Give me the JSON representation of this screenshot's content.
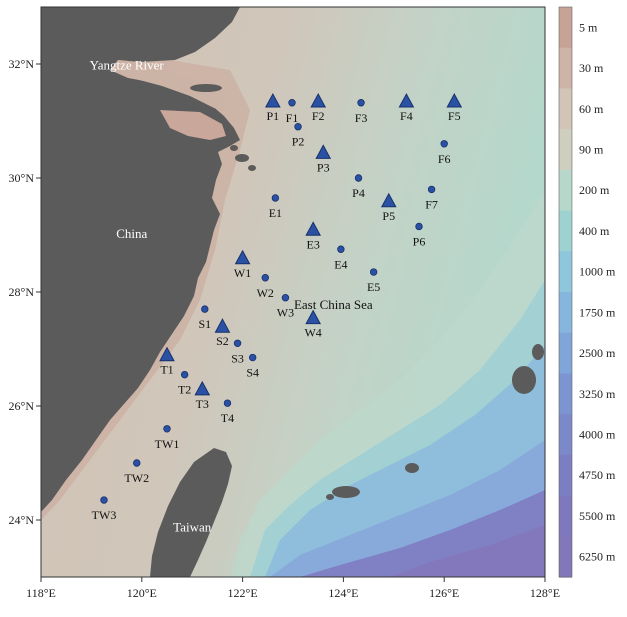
{
  "map": {
    "lon_range": [
      118,
      128
    ],
    "lat_range": [
      23,
      33
    ],
    "x_ticks": [
      {
        "value": 118,
        "label": "118°E"
      },
      {
        "value": 120,
        "label": "120°E"
      },
      {
        "value": 122,
        "label": "122°E"
      },
      {
        "value": 124,
        "label": "124°E"
      },
      {
        "value": 126,
        "label": "126°E"
      },
      {
        "value": 128,
        "label": "128°E"
      }
    ],
    "y_ticks": [
      {
        "value": 32,
        "label": "32°N"
      },
      {
        "value": 30,
        "label": "30°N"
      },
      {
        "value": 28,
        "label": "28°N"
      },
      {
        "value": 26,
        "label": "26°N"
      },
      {
        "value": 24,
        "label": "24°N"
      }
    ],
    "region_labels": [
      {
        "text": "Yangtze River",
        "lon": 119.7,
        "lat": 31.9,
        "color": "#ffffff"
      },
      {
        "text": "China",
        "lon": 119.8,
        "lat": 28.95,
        "color": "#ffffff"
      },
      {
        "text": "East China Sea",
        "lon": 123.8,
        "lat": 27.7,
        "color": "#111111"
      },
      {
        "text": "Taiwan",
        "lon": 121.0,
        "lat": 23.8,
        "color": "#ffffff"
      }
    ],
    "stations": [
      {
        "name": "P1",
        "type": "triangle",
        "lon": 122.6,
        "lat": 31.35
      },
      {
        "name": "F1",
        "type": "circle",
        "lon": 122.98,
        "lat": 31.32
      },
      {
        "name": "F2",
        "type": "triangle",
        "lon": 123.5,
        "lat": 31.35
      },
      {
        "name": "F3",
        "type": "circle",
        "lon": 124.35,
        "lat": 31.32
      },
      {
        "name": "F4",
        "type": "triangle",
        "lon": 125.25,
        "lat": 31.35
      },
      {
        "name": "F5",
        "type": "triangle",
        "lon": 126.2,
        "lat": 31.35
      },
      {
        "name": "P2",
        "type": "circle",
        "lon": 123.1,
        "lat": 30.9
      },
      {
        "name": "F6",
        "type": "circle",
        "lon": 126.0,
        "lat": 30.6
      },
      {
        "name": "P3",
        "type": "triangle",
        "lon": 123.6,
        "lat": 30.45
      },
      {
        "name": "P4",
        "type": "circle",
        "lon": 124.3,
        "lat": 30.0
      },
      {
        "name": "F7",
        "type": "circle",
        "lon": 125.75,
        "lat": 29.8
      },
      {
        "name": "E1",
        "type": "circle",
        "lon": 122.65,
        "lat": 29.65
      },
      {
        "name": "P5",
        "type": "triangle",
        "lon": 124.9,
        "lat": 29.6
      },
      {
        "name": "P6",
        "type": "circle",
        "lon": 125.5,
        "lat": 29.15
      },
      {
        "name": "E3",
        "type": "triangle",
        "lon": 123.4,
        "lat": 29.1
      },
      {
        "name": "E4",
        "type": "circle",
        "lon": 123.95,
        "lat": 28.75
      },
      {
        "name": "W1",
        "type": "triangle",
        "lon": 122.0,
        "lat": 28.6
      },
      {
        "name": "E5",
        "type": "circle",
        "lon": 124.6,
        "lat": 28.35
      },
      {
        "name": "W2",
        "type": "circle",
        "lon": 122.45,
        "lat": 28.25
      },
      {
        "name": "W3",
        "type": "circle",
        "lon": 122.85,
        "lat": 27.9
      },
      {
        "name": "S1",
        "type": "circle",
        "lon": 121.25,
        "lat": 27.7
      },
      {
        "name": "W4",
        "type": "triangle",
        "lon": 123.4,
        "lat": 27.55
      },
      {
        "name": "S2",
        "type": "triangle",
        "lon": 121.6,
        "lat": 27.4
      },
      {
        "name": "S3",
        "type": "circle",
        "lon": 121.9,
        "lat": 27.1
      },
      {
        "name": "T1",
        "type": "triangle",
        "lon": 120.5,
        "lat": 26.9
      },
      {
        "name": "S4",
        "type": "circle",
        "lon": 122.2,
        "lat": 26.85
      },
      {
        "name": "T2",
        "type": "circle",
        "lon": 120.85,
        "lat": 26.55
      },
      {
        "name": "T3",
        "type": "triangle",
        "lon": 121.2,
        "lat": 26.3
      },
      {
        "name": "T4",
        "type": "circle",
        "lon": 121.7,
        "lat": 26.05
      },
      {
        "name": "TW1",
        "type": "circle",
        "lon": 120.5,
        "lat": 25.6
      },
      {
        "name": "TW2",
        "type": "circle",
        "lon": 119.9,
        "lat": 25.0
      },
      {
        "name": "TW3",
        "type": "circle",
        "lon": 119.25,
        "lat": 24.35
      }
    ]
  },
  "legend": {
    "entries": [
      {
        "label": "5 m",
        "color": "#c6a396"
      },
      {
        "label": "30 m",
        "color": "#cdb4a6"
      },
      {
        "label": "60 m",
        "color": "#d2c4b6"
      },
      {
        "label": "90 m",
        "color": "#cfcfc0"
      },
      {
        "label": "200  m",
        "color": "#b7d7ca"
      },
      {
        "label": "400 m",
        "color": "#9ed2d1"
      },
      {
        "label": "1000 m",
        "color": "#8ec6db"
      },
      {
        "label": "1750 m",
        "color": "#86b6dd"
      },
      {
        "label": "2500 m",
        "color": "#80a6d9"
      },
      {
        "label": "3250 m",
        "color": "#7c95d2"
      },
      {
        "label": "4000 m",
        "color": "#7b88ca"
      },
      {
        "label": "4750 m",
        "color": "#7c7ec3"
      },
      {
        "label": "5500 m",
        "color": "#7e78bd"
      },
      {
        "label": "6250 m",
        "color": "#8177b9"
      }
    ]
  },
  "colors": {
    "land": "#5b5b5b",
    "shelf": "#cdbfb2",
    "outer_shelf": "#bfd5c9",
    "slope": "#a4d0d4",
    "trough": "#90bcd9",
    "deep": "#7f86c8",
    "station_fill": "#2a51a3",
    "station_stroke": "#17306b"
  }
}
